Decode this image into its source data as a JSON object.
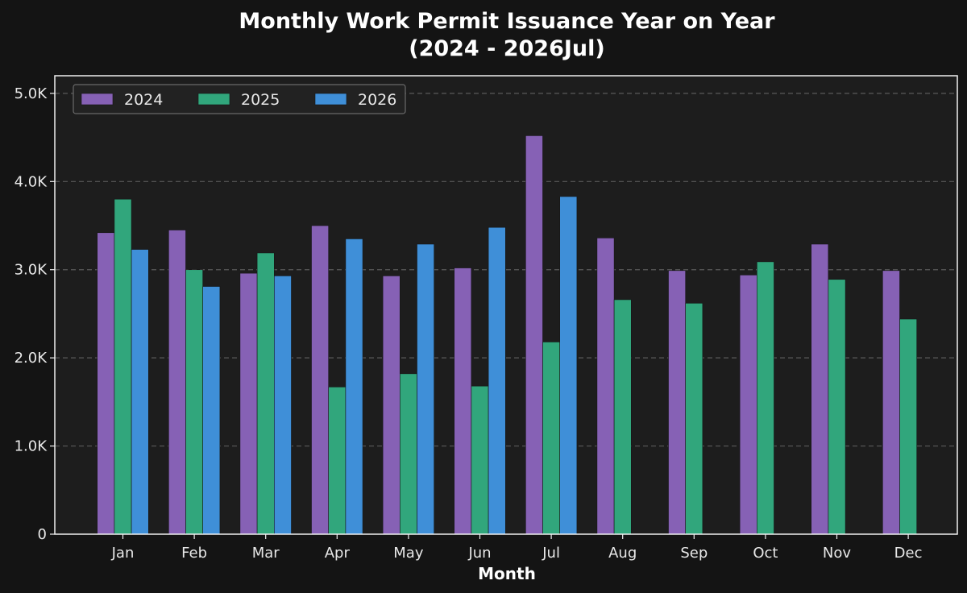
{
  "chart_data": {
    "type": "bar",
    "title": "Monthly Work Permit Issuance Year on Year",
    "subtitle": "(2024 - 2026Jul)",
    "xlabel": "Month",
    "ylabel": "",
    "categories": [
      "Jan",
      "Feb",
      "Mar",
      "Apr",
      "May",
      "Jun",
      "Jul",
      "Aug",
      "Sep",
      "Oct",
      "Nov",
      "Dec"
    ],
    "ylim": [
      0,
      5200
    ],
    "yticks": [
      0,
      1000,
      2000,
      3000,
      4000,
      5000
    ],
    "ytick_labels": [
      "0",
      "1.0K",
      "2.0K",
      "3.0K",
      "4.0K",
      "5.0K"
    ],
    "grid": "horizontal dashed",
    "legend": "top-left",
    "series": [
      {
        "name": "2024",
        "color": "#8661b5",
        "values": [
          3420,
          3450,
          2960,
          3500,
          2930,
          3020,
          4520,
          3360,
          2990,
          2940,
          3290,
          2990
        ]
      },
      {
        "name": "2025",
        "color": "#31a67c",
        "values": [
          3800,
          3000,
          3190,
          1670,
          1820,
          1680,
          2180,
          2660,
          2620,
          3090,
          2890,
          2440
        ]
      },
      {
        "name": "2026",
        "color": "#3f8fd8",
        "values": [
          3230,
          2810,
          2930,
          3350,
          3290,
          3480,
          3830,
          null,
          null,
          null,
          null,
          null
        ]
      }
    ]
  }
}
